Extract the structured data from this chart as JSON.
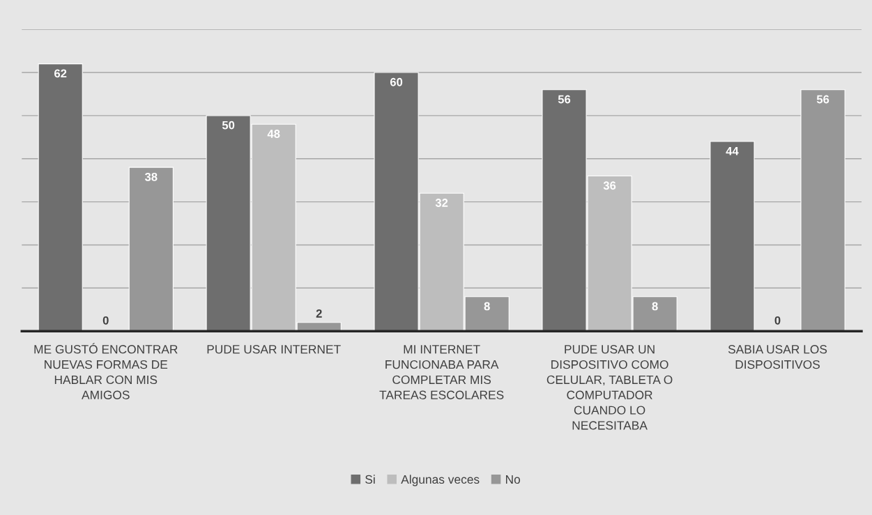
{
  "chart_data": {
    "type": "bar",
    "categories": [
      "ME GUSTÓ ENCONTRAR\nNUEVAS FORMAS DE\nHABLAR CON MIS\nAMIGOS",
      "PUDE USAR INTERNET",
      "MI INTERNET\nFUNCIONABA PARA\nCOMPLETAR MIS\nTAREAS ESCOLARES",
      "PUDE USAR UN\nDISPOSITIVO COMO\nCELULAR, TABLETA O\nCOMPUTADOR\nCUANDO LO\nNECESITABA",
      "SABIA USAR LOS\nDISPOSITIVOS"
    ],
    "series": [
      {
        "name": "Si",
        "color": "#6e6e6e",
        "values": [
          62,
          50,
          60,
          56,
          44
        ]
      },
      {
        "name": "Algunas veces",
        "color": "#bdbdbd",
        "values": [
          0,
          48,
          32,
          36,
          0
        ]
      },
      {
        "name": "No",
        "color": "#979797",
        "values": [
          38,
          2,
          8,
          8,
          56
        ]
      }
    ],
    "ylim": [
      0,
      70
    ],
    "yticks": [
      {
        "value": 0,
        "label": null
      },
      {
        "value": 10,
        "label": null
      },
      {
        "value": 20,
        "label": null
      },
      {
        "value": 30,
        "label": null
      },
      {
        "value": 40,
        "label": null
      },
      {
        "value": 50,
        "label": null
      },
      {
        "value": 60,
        "label": null
      },
      {
        "value": 70,
        "label": null
      }
    ],
    "tick_labels": "x",
    "grid": "y",
    "data_labels": true,
    "legend": "bottom"
  }
}
